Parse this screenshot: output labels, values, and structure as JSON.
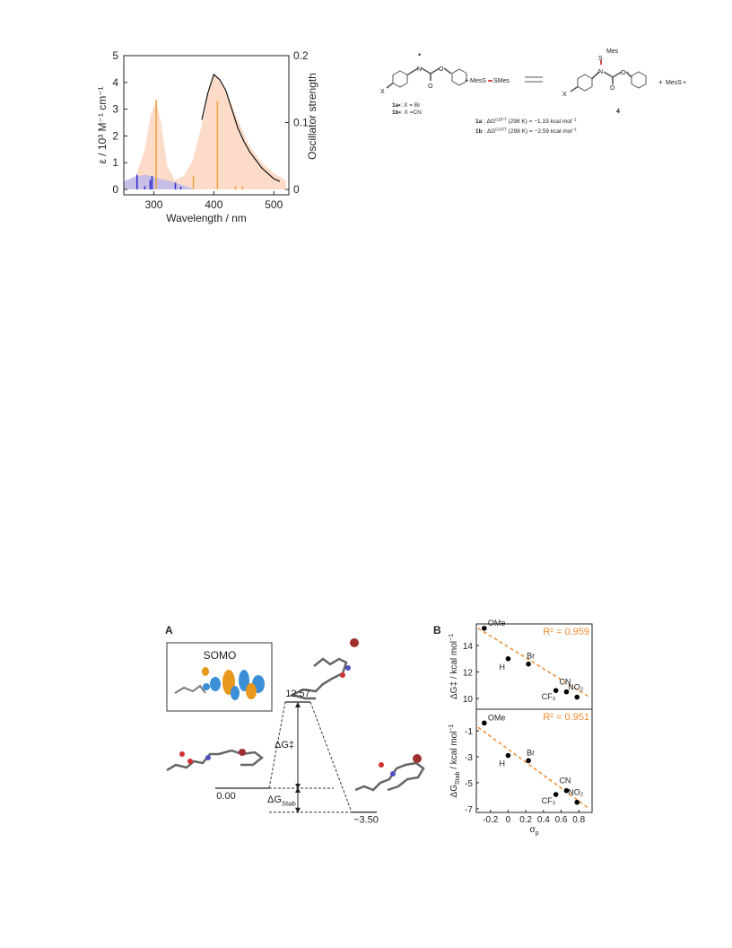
{
  "chart_data": [
    {
      "type": "line",
      "ylabel": "ε / 10³ M⁻¹ cm⁻¹",
      "y2label": "Oscillator strength",
      "xlabel": "Wavelength / nm",
      "xlim": [
        250,
        525
      ],
      "xticks": [
        300,
        400,
        500
      ],
      "ylim": [
        -0.2,
        5
      ],
      "yticks": [
        0,
        1,
        2,
        3,
        4,
        5
      ],
      "y2lim": [
        -0.008,
        0.2
      ],
      "y2ticks": [
        0,
        0.1,
        0.2
      ],
      "series": [
        {
          "type": "area",
          "color": "#fbd3ba",
          "x": [
            250,
            270,
            285,
            295,
            304,
            312,
            322,
            335,
            350,
            365,
            380,
            390,
            400,
            410,
            425,
            440,
            460,
            480,
            500,
            520
          ],
          "values": [
            0.2,
            0.5,
            1.5,
            2.8,
            3.3,
            2.5,
            0.9,
            0.35,
            0.5,
            1.1,
            2.4,
            3.5,
            4.3,
            4.1,
            3.4,
            2.6,
            1.6,
            1.0,
            0.6,
            0.35
          ]
        },
        {
          "type": "area",
          "color": "#b9b6ee",
          "x": [
            250,
            265,
            285,
            295,
            310,
            330,
            350,
            370
          ],
          "values": [
            0.3,
            0.45,
            0.55,
            0.5,
            0.4,
            0.3,
            0.15,
            0.0
          ]
        },
        {
          "type": "stick",
          "color": "#f0a040",
          "axis": "y2",
          "x": [
            304,
            366,
            406,
            436,
            448
          ],
          "values": [
            0.134,
            0.02,
            0.132,
            0.005,
            0.005
          ]
        },
        {
          "type": "stick",
          "color": "#2a2ad0",
          "axis": "y2",
          "x": [
            272,
            285,
            294,
            297,
            336,
            345
          ],
          "values": [
            0.022,
            0.005,
            0.014,
            0.02,
            0.01,
            0.004
          ]
        },
        {
          "type": "line",
          "color": "#111111",
          "x": [
            380,
            390,
            400,
            410,
            420,
            430,
            440,
            450,
            460,
            470,
            480,
            490,
            500,
            510
          ],
          "values": [
            2.6,
            3.6,
            4.3,
            4.1,
            3.7,
            3.0,
            2.3,
            1.8,
            1.4,
            1.1,
            0.8,
            0.6,
            0.4,
            0.3
          ]
        }
      ]
    },
    {
      "type": "scatter",
      "ylabel": [
        {
          "text": "ΔG‡ / kcal mol"
        },
        {
          "text": "−1",
          "shift": "super"
        }
      ],
      "xlim": [
        -0.36,
        0.95
      ],
      "ylim": [
        9.19,
        15.63
      ],
      "yticks": [
        10,
        12,
        14
      ],
      "color": "#000000",
      "point_labels": [
        "OMe",
        "H",
        "Br",
        "CF₃",
        "CN",
        "NO₂"
      ],
      "x": [
        -0.27,
        0,
        0.23,
        0.54,
        0.66,
        0.78
      ],
      "values": [
        15.3,
        13.0,
        12.6,
        10.6,
        10.5,
        10.1
      ],
      "fit": {
        "x": [
          -0.34,
          0.92
        ],
        "values": [
          15.3,
          10.1
        ],
        "color": "#f08a30"
      },
      "annotation": "R² = 0.959"
    },
    {
      "type": "scatter",
      "ylabel": [
        {
          "text": "ΔG"
        },
        {
          "text": "Stab",
          "shift": "sub"
        },
        {
          "text": " / kcal mol"
        },
        {
          "text": "−1",
          "shift": "super"
        }
      ],
      "xlabel": [
        {
          "text": "σ"
        },
        {
          "text": "p",
          "shift": "sub"
        }
      ],
      "xlim": [
        -0.36,
        0.95
      ],
      "xticks": [
        -0.2,
        0,
        0.2,
        0.4,
        0.6,
        0.8
      ],
      "ylim": [
        -7.28,
        0.66
      ],
      "yticks": [
        -1,
        -3,
        -5,
        -7
      ],
      "color": "#000000",
      "point_labels": [
        "OMe",
        "H",
        "Br",
        "CF₃",
        "CN",
        "NO₂"
      ],
      "x": [
        -0.27,
        0,
        0.23,
        0.54,
        0.66,
        0.78
      ],
      "values": [
        -0.4,
        -2.9,
        -3.3,
        -5.9,
        -5.6,
        -6.5
      ],
      "fit": {
        "x": [
          -0.34,
          0.92
        ],
        "values": [
          -0.73,
          -7.0
        ],
        "color": "#f08a30"
      },
      "annotation": "R² = 0.951"
    }
  ],
  "panel_labels": [
    "A",
    "B"
  ],
  "energy_diagram": {
    "orbital_label": "SOMO",
    "values": [
      0,
      12.57,
      -3.5
    ],
    "value_labels": [
      "0.00",
      "12.57",
      "−3.50"
    ],
    "barrier_label": "ΔG‡",
    "stab_label": [
      {
        "text": "ΔG"
      },
      {
        "text": "Stab",
        "shift": "sub"
      }
    ]
  },
  "scheme": {
    "x_left": "X",
    "x_right": "X",
    "radical_dot": "•",
    "n_left": "N",
    "n_right": "N",
    "o_left": [
      "O",
      "O"
    ],
    "o_right": [
      "O",
      "O"
    ],
    "plus_1": "+",
    "reagent_left": "MesS",
    "reagent_right": "SMes",
    "product_s": "S",
    "product_mes": "Mes",
    "product_number": "4",
    "plus_2": "+",
    "byproduct": "MesS •",
    "label_1a": [
      {
        "text": "1a•",
        "bold": true
      },
      {
        "text": ": X = Br"
      }
    ],
    "label_1b": [
      {
        "text": "1b•",
        "bold": true
      },
      {
        "text": ": X =CN"
      }
    ],
    "energy_1a": [
      {
        "text": "1a",
        "bold": true
      },
      {
        "text": " : ΔG"
      },
      {
        "text": "0,DFT",
        "shift": "super"
      },
      {
        "text": " (298 K) = −1.19 kcal mol"
      },
      {
        "text": "−1",
        "shift": "super"
      }
    ],
    "energy_1b": [
      {
        "text": "1b",
        "bold": true
      },
      {
        "text": " : ΔG"
      },
      {
        "text": "0,DFT",
        "shift": "super"
      },
      {
        "text": " (298 K) = −2.59 kcal mol"
      },
      {
        "text": "−1",
        "shift": "super"
      }
    ]
  }
}
